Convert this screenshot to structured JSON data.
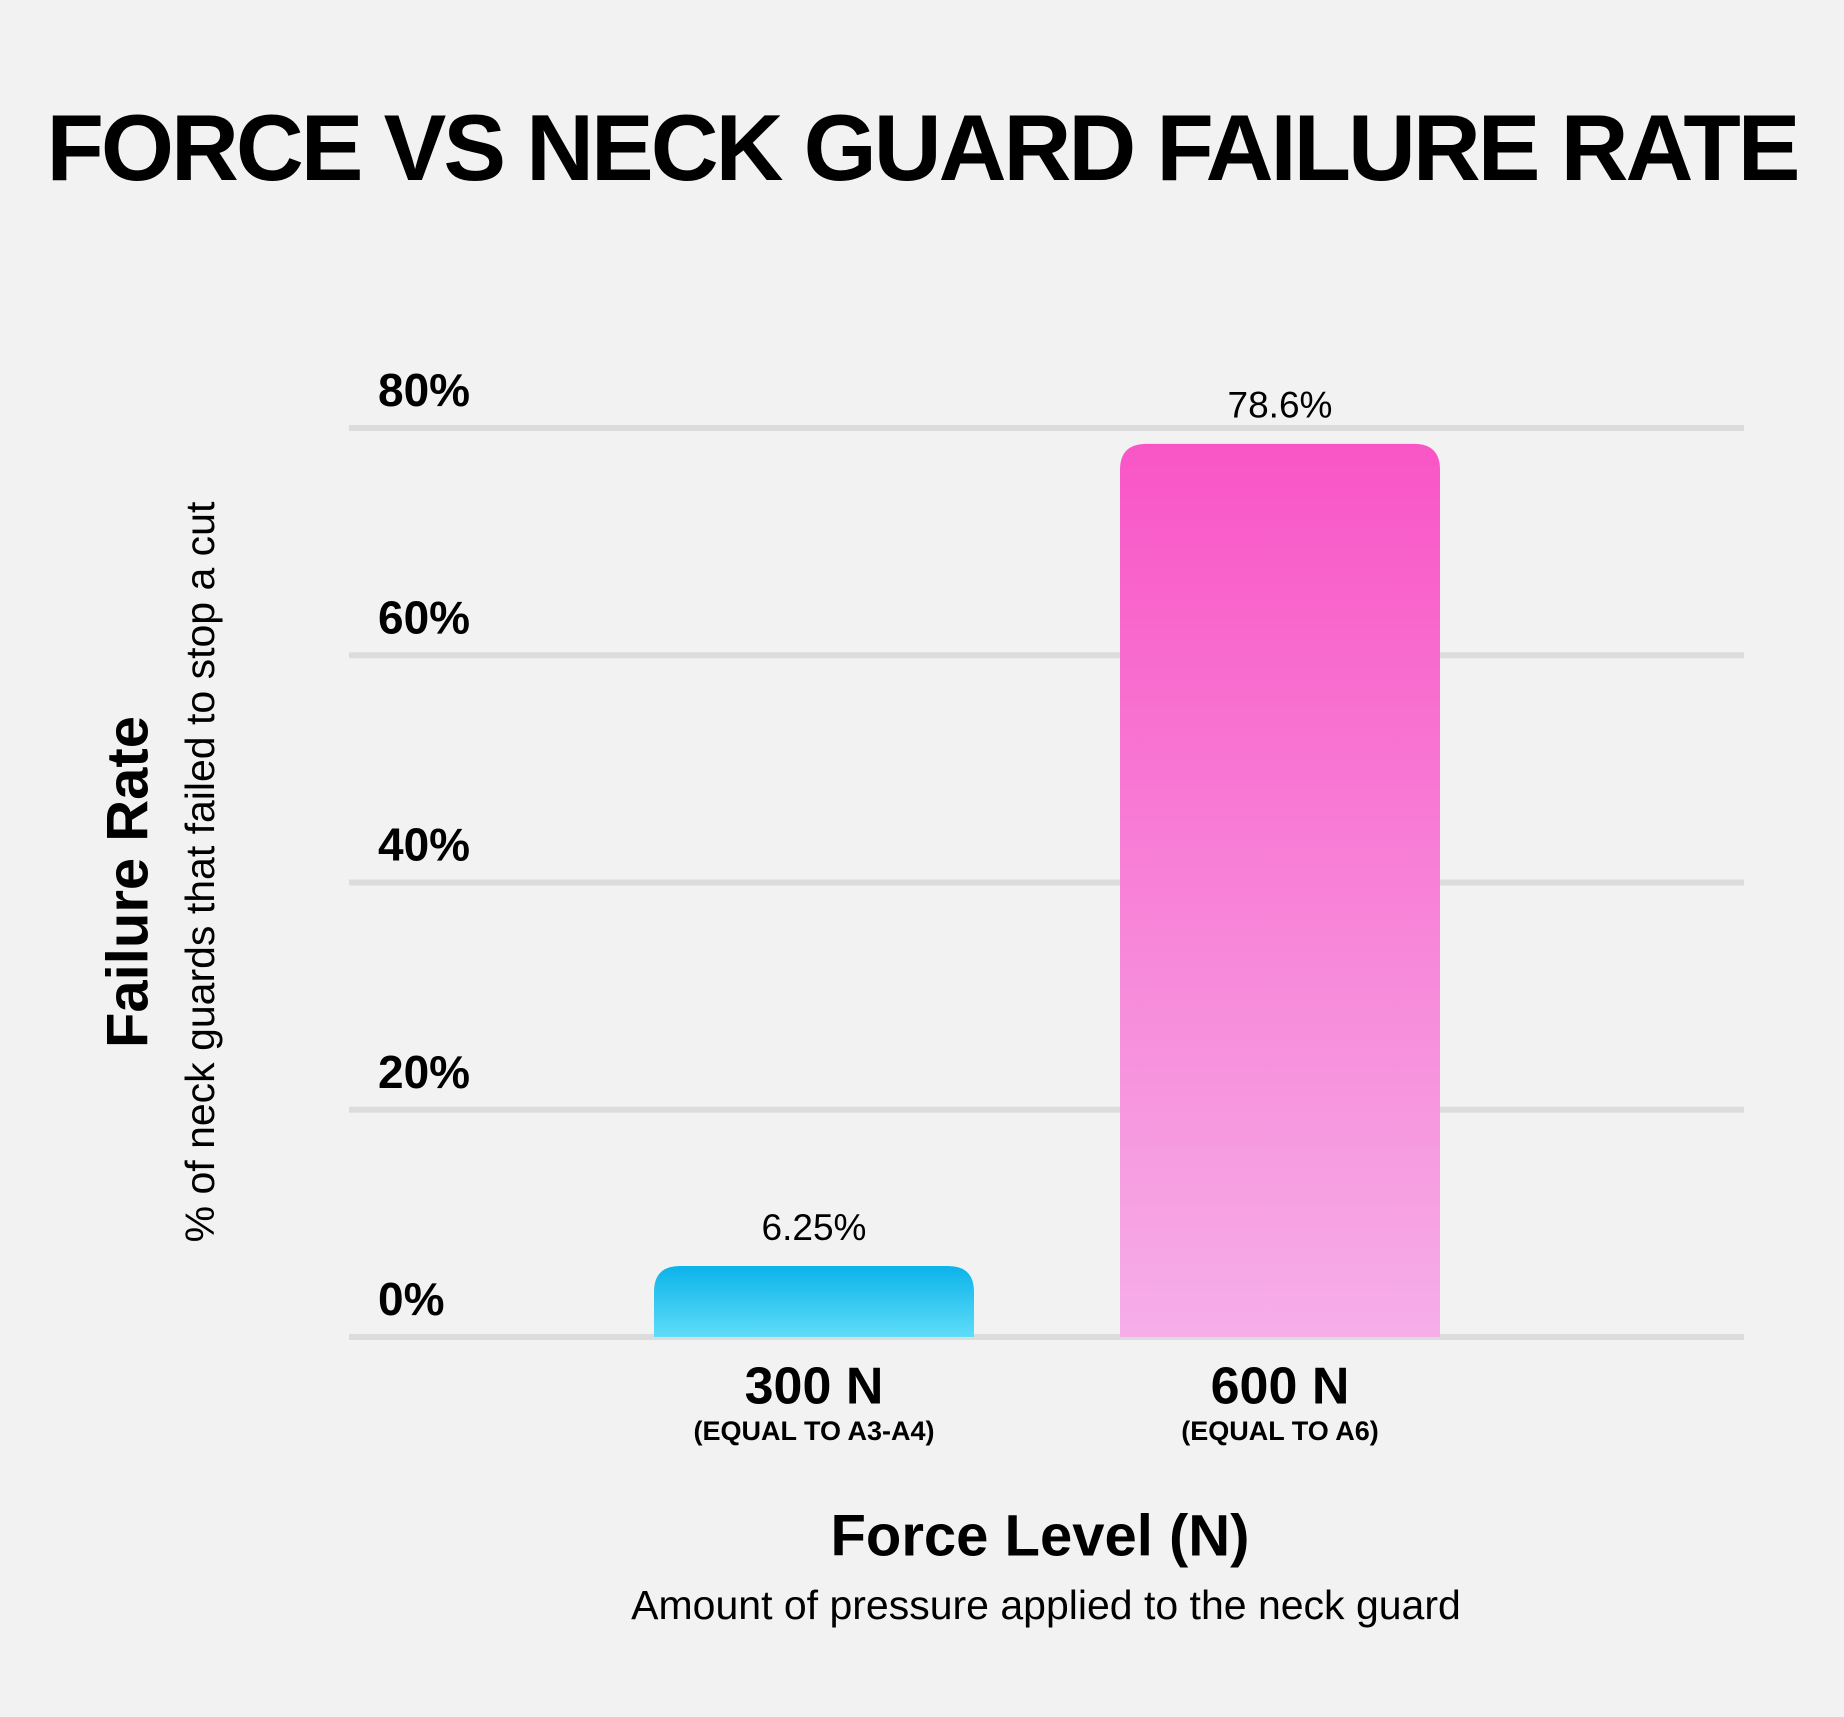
{
  "chart_data": {
    "type": "bar",
    "title": "FORCE VS NECK GUARD FAILURE RATE",
    "categories": [
      "300 N",
      "600 N"
    ],
    "category_subtitles": [
      "(EQUAL TO A3-A4)",
      "(EQUAL TO A6)"
    ],
    "values": [
      6.25,
      78.6
    ],
    "value_labels": [
      "6.25%",
      "78.6%"
    ],
    "colors": [
      [
        "#0bb3ea",
        "#5fdcf8"
      ],
      [
        "#f955c6",
        "#f6aee8"
      ]
    ],
    "ylim": [
      0,
      80
    ],
    "yticks": [
      {
        "value": 0,
        "label": "0%"
      },
      {
        "value": 20,
        "label": "20%"
      },
      {
        "value": 40,
        "label": "40%"
      },
      {
        "value": 60,
        "label": "60%"
      },
      {
        "value": 80,
        "label": "80%"
      }
    ],
    "grid": true,
    "x_label": "Force Level (N)",
    "x_sublabel": "Amount of pressure applied to the neck guard",
    "y_label": "Failure Rate",
    "y_sublabel": "% of neck guards that failed to stop a cut"
  }
}
